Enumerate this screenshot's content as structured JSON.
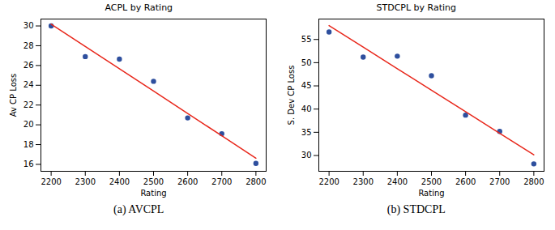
{
  "chart_data": [
    {
      "type": "scatter",
      "title": "ACPL by Rating",
      "caption": "(a) AVCPL",
      "x_label": "Rating",
      "y_label": "Av CP Loss",
      "x": [
        2200,
        2300,
        2400,
        2500,
        2600,
        2700,
        2800
      ],
      "series": [
        {
          "type": "scatter",
          "color": "#2e4f9e",
          "marker": "circle",
          "values": [
            30.0,
            26.9,
            26.65,
            24.4,
            20.7,
            19.1,
            16.1
          ]
        },
        {
          "type": "line",
          "color": "#e8271b",
          "values": [
            30.18,
            27.92,
            25.67,
            23.41,
            21.15,
            18.89,
            16.63
          ]
        }
      ],
      "xlim": [
        2170,
        2830
      ],
      "xticks": [
        2200,
        2300,
        2400,
        2500,
        2600,
        2700,
        2800
      ],
      "ylim": [
        15.3,
        30.7
      ],
      "yticks": [
        16,
        18,
        20,
        22,
        24,
        26,
        28,
        30
      ],
      "grid": false
    },
    {
      "type": "scatter",
      "title": "STDCPL by Rating",
      "caption": "(b) STDCPL",
      "x_label": "Rating",
      "y_label": "S. Dev CP Loss",
      "x": [
        2200,
        2300,
        2400,
        2500,
        2600,
        2700,
        2800
      ],
      "series": [
        {
          "type": "scatter",
          "color": "#2e4f9e",
          "marker": "circle",
          "values": [
            56.6,
            51.2,
            51.4,
            47.2,
            38.7,
            35.2,
            28.2
          ]
        },
        {
          "type": "line",
          "color": "#e8271b",
          "values": [
            57.99,
            53.35,
            48.71,
            44.07,
            39.43,
            34.79,
            30.15
          ]
        }
      ],
      "xlim": [
        2170,
        2830
      ],
      "xticks": [
        2200,
        2300,
        2400,
        2500,
        2600,
        2700,
        2800
      ],
      "ylim": [
        26.6,
        59.4
      ],
      "yticks": [
        30,
        35,
        40,
        45,
        50,
        55
      ],
      "grid": false
    }
  ]
}
